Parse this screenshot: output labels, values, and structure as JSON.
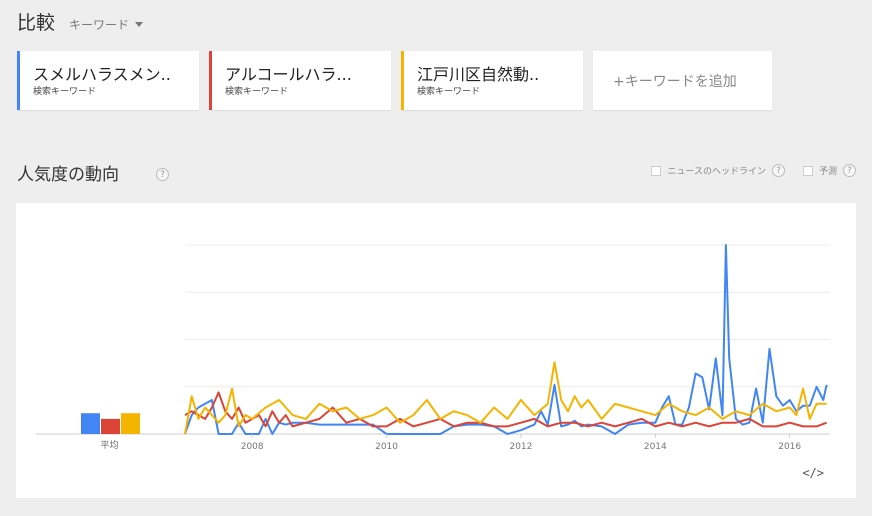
{
  "header": {
    "title": "比較",
    "dropdown_label": "キーワード"
  },
  "terms": [
    {
      "label": "スメルハラスメン..",
      "sub": "検索キーワード",
      "color": "#4285f4"
    },
    {
      "label": "アルコールハラ...",
      "sub": "検索キーワード",
      "color": "#db4437"
    },
    {
      "label": "江戸川区自然動..",
      "sub": "検索キーワード",
      "color": "#f4b400"
    }
  ],
  "add_term": "+キーワードを追加",
  "section": {
    "title": "人気度の動向",
    "help": "?"
  },
  "options": {
    "news": "ニュースのヘッドライン",
    "forecast": "予測",
    "help": "?"
  },
  "embed_label": "</>",
  "chart_data": {
    "type": "line",
    "x_ticks": [
      "2008",
      "2010",
      "2012",
      "2014",
      "2016"
    ],
    "x_range": [
      2007.0,
      2016.6
    ],
    "ylim": [
      0,
      100
    ],
    "grid": true,
    "average_label": "平均",
    "averages": [
      11,
      8,
      11
    ],
    "series": [
      {
        "color": "#4285f4",
        "x": [
          2007.0,
          2007.1,
          2007.2,
          2007.3,
          2007.4,
          2007.5,
          2007.6,
          2007.7,
          2007.8,
          2007.9,
          2008.0,
          2008.1,
          2008.2,
          2008.3,
          2008.4,
          2008.5,
          2008.6,
          2008.8,
          2009.0,
          2009.2,
          2009.4,
          2009.6,
          2009.8,
          2010.0,
          2010.2,
          2010.4,
          2010.6,
          2010.8,
          2011.0,
          2011.2,
          2011.4,
          2011.6,
          2011.8,
          2012.0,
          2012.2,
          2012.3,
          2012.4,
          2012.5,
          2012.6,
          2012.7,
          2012.8,
          2012.9,
          2013.0,
          2013.2,
          2013.4,
          2013.6,
          2013.8,
          2014.0,
          2014.1,
          2014.2,
          2014.3,
          2014.4,
          2014.5,
          2014.6,
          2014.7,
          2014.8,
          2014.9,
          2015.0,
          2015.05,
          2015.1,
          2015.2,
          2015.3,
          2015.4,
          2015.5,
          2015.6,
          2015.7,
          2015.8,
          2015.9,
          2016.0,
          2016.1,
          2016.2,
          2016.3,
          2016.4,
          2016.5,
          2016.55
        ],
        "values": [
          0,
          10,
          14,
          16,
          18,
          0,
          0,
          0,
          6,
          0,
          0,
          0,
          8,
          0,
          6,
          5,
          6,
          6,
          5,
          5,
          5,
          5,
          5,
          0,
          0,
          0,
          0,
          0,
          4,
          5,
          5,
          4,
          0,
          2,
          5,
          12,
          5,
          26,
          4,
          5,
          7,
          4,
          5,
          4,
          0,
          5,
          6,
          6,
          14,
          20,
          5,
          5,
          14,
          32,
          30,
          13,
          40,
          10,
          100,
          40,
          8,
          5,
          6,
          24,
          6,
          45,
          20,
          15,
          18,
          12,
          15,
          15,
          25,
          18,
          26
        ]
      },
      {
        "color": "#db4437",
        "x": [
          2007.0,
          2007.1,
          2007.2,
          2007.3,
          2007.4,
          2007.5,
          2007.6,
          2007.7,
          2007.8,
          2007.9,
          2008.0,
          2008.1,
          2008.2,
          2008.3,
          2008.4,
          2008.5,
          2008.6,
          2008.8,
          2009.0,
          2009.2,
          2009.4,
          2009.6,
          2009.8,
          2010.0,
          2010.2,
          2010.4,
          2010.6,
          2010.8,
          2011.0,
          2011.2,
          2011.4,
          2011.6,
          2011.8,
          2012.0,
          2012.2,
          2012.4,
          2012.6,
          2012.8,
          2013.0,
          2013.2,
          2013.4,
          2013.6,
          2013.8,
          2014.0,
          2014.2,
          2014.4,
          2014.6,
          2014.8,
          2015.0,
          2015.2,
          2015.4,
          2015.6,
          2015.8,
          2016.0,
          2016.2,
          2016.4,
          2016.55
        ],
        "values": [
          10,
          12,
          10,
          8,
          14,
          22,
          12,
          8,
          14,
          6,
          8,
          10,
          4,
          12,
          6,
          10,
          4,
          6,
          8,
          14,
          6,
          8,
          4,
          4,
          8,
          4,
          6,
          8,
          4,
          6,
          6,
          4,
          4,
          6,
          8,
          4,
          6,
          6,
          4,
          6,
          4,
          6,
          8,
          4,
          6,
          4,
          6,
          4,
          6,
          6,
          8,
          4,
          4,
          6,
          4,
          4,
          6
        ]
      },
      {
        "color": "#f4b400",
        "x": [
          2007.0,
          2007.1,
          2007.2,
          2007.3,
          2007.4,
          2007.5,
          2007.6,
          2007.7,
          2007.8,
          2007.9,
          2008.0,
          2008.2,
          2008.4,
          2008.6,
          2008.8,
          2009.0,
          2009.2,
          2009.4,
          2009.6,
          2009.8,
          2010.0,
          2010.2,
          2010.4,
          2010.6,
          2010.8,
          2011.0,
          2011.2,
          2011.4,
          2011.6,
          2011.8,
          2012.0,
          2012.2,
          2012.4,
          2012.5,
          2012.6,
          2012.7,
          2012.8,
          2012.9,
          2013.0,
          2013.2,
          2013.4,
          2013.6,
          2013.8,
          2014.0,
          2014.2,
          2014.4,
          2014.6,
          2014.8,
          2015.0,
          2015.2,
          2015.4,
          2015.6,
          2015.8,
          2016.0,
          2016.1,
          2016.2,
          2016.3,
          2016.4,
          2016.55
        ],
        "values": [
          0,
          20,
          8,
          14,
          10,
          6,
          10,
          24,
          4,
          10,
          8,
          14,
          18,
          10,
          8,
          16,
          12,
          14,
          8,
          10,
          14,
          6,
          10,
          18,
          8,
          12,
          10,
          6,
          14,
          8,
          18,
          10,
          16,
          38,
          18,
          12,
          20,
          14,
          18,
          8,
          16,
          14,
          12,
          10,
          16,
          12,
          10,
          14,
          8,
          12,
          10,
          16,
          12,
          14,
          10,
          24,
          8,
          16,
          16
        ]
      }
    ]
  }
}
